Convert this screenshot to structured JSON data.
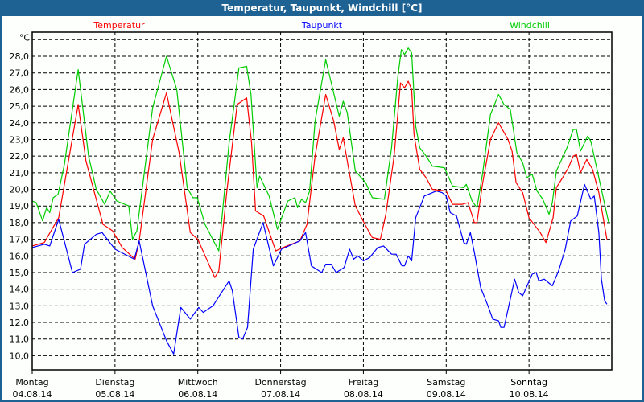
{
  "window": {
    "title": "Temperatur, Taupunkt, Windchill [°C]"
  },
  "colors": {
    "titlebar": "#1e6193",
    "Temperatur": "#ff0000",
    "Taupunkt": "#0000ff",
    "Windchill": "#00cc00",
    "grid": "#000000"
  },
  "chart_data": {
    "type": "line",
    "title": "Temperatur, Taupunkt, Windchill [°C]",
    "y_unit": "°C",
    "ylim": [
      9.15,
      29.45
    ],
    "y_ticks": [
      "28,0",
      "27,0",
      "26,0",
      "25,0",
      "24,0",
      "23,0",
      "22,0",
      "21,0",
      "20,0",
      "19,0",
      "18,0",
      "17,0",
      "16,0",
      "15,0",
      "14,0",
      "13,0",
      "12,0",
      "11,0",
      "10,0"
    ],
    "y_tick_values": [
      28,
      27,
      26,
      25,
      24,
      23,
      22,
      21,
      20,
      19,
      18,
      17,
      16,
      15,
      14,
      13,
      12,
      11,
      10
    ],
    "y_grid_values": [
      29,
      28,
      27,
      26,
      25,
      24,
      23,
      22,
      21,
      20,
      19,
      18,
      17,
      16,
      15,
      14,
      13,
      12,
      11,
      10
    ],
    "xlim": [
      "04.08.14 00:00",
      "11.08.14 00:00"
    ],
    "x_ticks": [
      {
        "day": "Montag",
        "date": "04.08.14"
      },
      {
        "day": "Dienstag",
        "date": "05.08.14"
      },
      {
        "day": "Mittwoch",
        "date": "06.08.14"
      },
      {
        "day": "Donnerstag",
        "date": "07.08.14"
      },
      {
        "day": "Freitag",
        "date": "08.08.14"
      },
      {
        "day": "Samstag",
        "date": "09.08.14"
      },
      {
        "day": "Sonntag",
        "date": "10.08.14"
      }
    ],
    "grid": true,
    "legend_placement": "top",
    "series": [
      {
        "name": "Temperatur",
        "color": "#ff0000",
        "points": [
          [
            "04.08.14 00:00",
            16.6
          ],
          [
            "04.08.14 03:30",
            16.8
          ],
          [
            "04.08.14 07:40",
            18.3
          ],
          [
            "04.08.14 13:20",
            25.1
          ],
          [
            "04.08.14 15:35",
            21.7
          ],
          [
            "04.08.14 20:30",
            17.9
          ],
          [
            "04.08.14 23:20",
            17.5
          ],
          [
            "05.08.14 02:05",
            16.5
          ],
          [
            "05.08.14 05:50",
            15.8
          ],
          [
            "05.08.14 07:00",
            16.9
          ],
          [
            "05.08.14 10:55",
            23.0
          ],
          [
            "05.08.14 14:55",
            25.8
          ],
          [
            "05.08.14 18:35",
            22.2
          ],
          [
            "05.08.14 21:50",
            17.4
          ],
          [
            "06.08.14 00:00",
            17.0
          ],
          [
            "06.08.14 04:55",
            14.7
          ],
          [
            "06.08.14 06:05",
            15.1
          ],
          [
            "06.08.14 08:25",
            19.9
          ],
          [
            "06.08.14 11:25",
            25.1
          ],
          [
            "06.08.14 14:10",
            25.5
          ],
          [
            "06.08.14 15:35",
            22.8
          ],
          [
            "06.08.14 16:45",
            18.7
          ],
          [
            "06.08.14 19:05",
            18.4
          ],
          [
            "06.08.14 22:35",
            16.3
          ],
          [
            "07.08.14 00:40",
            16.5
          ],
          [
            "07.08.14 05:35",
            16.9
          ],
          [
            "07.08.14 07:40",
            17.9
          ],
          [
            "07.08.14 10:00",
            22.0
          ],
          [
            "07.08.14 13:05",
            25.7
          ],
          [
            "07.08.14 15:25",
            24.1
          ],
          [
            "07.08.14 17:00",
            22.4
          ],
          [
            "07.08.14 18:10",
            23.1
          ],
          [
            "07.08.14 19:20",
            21.7
          ],
          [
            "07.08.14 21:40",
            19.0
          ],
          [
            "08.08.14 00:40",
            17.8
          ],
          [
            "08.08.14 02:35",
            17.1
          ],
          [
            "08.08.14 04:55",
            17.0
          ],
          [
            "08.08.14 06:30",
            18.5
          ],
          [
            "08.08.14 08:55",
            22.0
          ],
          [
            "08.08.14 10:45",
            26.4
          ],
          [
            "08.08.14 11:55",
            26.1
          ],
          [
            "08.08.14 13:00",
            26.5
          ],
          [
            "08.08.14 14:00",
            26.0
          ],
          [
            "08.08.14 14:40",
            23.3
          ],
          [
            "08.08.14 16:20",
            21.2
          ],
          [
            "08.08.14 18:10",
            20.7
          ],
          [
            "08.08.14 20:00",
            20.0
          ],
          [
            "09.08.14 00:00",
            19.9
          ],
          [
            "09.08.14 01:50",
            19.1
          ],
          [
            "09.08.14 04:40",
            19.1
          ],
          [
            "09.08.14 06:20",
            19.2
          ],
          [
            "09.08.14 08:10",
            18.0
          ],
          [
            "09.08.14 08:55",
            18.0
          ],
          [
            "09.08.14 10:30",
            20.3
          ],
          [
            "09.08.14 12:50",
            23.0
          ],
          [
            "09.08.14 15:10",
            24.0
          ],
          [
            "09.08.14 17:55",
            23.0
          ],
          [
            "09.08.14 19:05",
            22.3
          ],
          [
            "09.08.14 20:15",
            20.4
          ],
          [
            "09.08.14 22:10",
            19.8
          ],
          [
            "10.08.14 00:00",
            18.3
          ],
          [
            "10.08.14 03:15",
            17.4
          ],
          [
            "10.08.14 04:55",
            16.8
          ],
          [
            "10.08.14 07:00",
            18.3
          ],
          [
            "10.08.14 07:55",
            20.1
          ],
          [
            "10.08.14 09:45",
            20.7
          ],
          [
            "10.08.14 11:25",
            21.3
          ],
          [
            "10.08.14 12:50",
            22.0
          ],
          [
            "10.08.14 13:45",
            22.1
          ],
          [
            "10.08.14 14:55",
            21.0
          ],
          [
            "10.08.14 16:45",
            21.8
          ],
          [
            "10.08.14 18:25",
            21.2
          ],
          [
            "10.08.14 20:15",
            19.8
          ],
          [
            "10.08.14 22:35",
            17.0
          ]
        ]
      },
      {
        "name": "Taupunkt",
        "color": "#0000ff",
        "points": [
          [
            "04.08.14 00:00",
            16.5
          ],
          [
            "04.08.14 03:30",
            16.7
          ],
          [
            "04.08.14 05:05",
            16.6
          ],
          [
            "04.08.14 07:40",
            18.2
          ],
          [
            "04.08.14 11:40",
            15.0
          ],
          [
            "04.08.14 14:00",
            15.2
          ],
          [
            "04.08.14 15:10",
            16.7
          ],
          [
            "04.08.14 18:35",
            17.3
          ],
          [
            "04.08.14 20:15",
            17.4
          ],
          [
            "05.08.14 00:00",
            16.4
          ],
          [
            "05.08.14 05:35",
            15.8
          ],
          [
            "05.08.14 07:00",
            16.9
          ],
          [
            "05.08.14 10:55",
            13.0
          ],
          [
            "05.08.14 14:55",
            10.9
          ],
          [
            "05.08.14 17:00",
            10.1
          ],
          [
            "05.08.14 19:05",
            12.9
          ],
          [
            "05.08.14 21:50",
            12.2
          ],
          [
            "06.08.14 00:15",
            12.9
          ],
          [
            "06.08.14 01:35",
            12.6
          ],
          [
            "06.08.14 04:25",
            13.0
          ],
          [
            "06.08.14 07:30",
            14.0
          ],
          [
            "06.08.14 09:05",
            14.5
          ],
          [
            "06.08.14 10:00",
            13.9
          ],
          [
            "06.08.14 11:55",
            11.1
          ],
          [
            "06.08.14 13:00",
            11.0
          ],
          [
            "06.08.14 14:25",
            11.7
          ],
          [
            "06.08.14 16:05",
            16.4
          ],
          [
            "06.08.14 18:55",
            18.0
          ],
          [
            "06.08.14 21:55",
            15.4
          ],
          [
            "07.08.14 00:15",
            16.4
          ],
          [
            "07.08.14 05:35",
            16.9
          ],
          [
            "07.08.14 07:15",
            17.4
          ],
          [
            "07.08.14 08:55",
            15.4
          ],
          [
            "07.08.14 11:55",
            15.0
          ],
          [
            "07.08.14 13:05",
            15.5
          ],
          [
            "07.08.14 14:40",
            15.5
          ],
          [
            "07.08.14 16:05",
            15.0
          ],
          [
            "07.08.14 18:25",
            15.3
          ],
          [
            "07.08.14 20:00",
            16.4
          ],
          [
            "07.08.14 21:10",
            15.8
          ],
          [
            "07.08.14 22:25",
            16.0
          ],
          [
            "08.08.14 00:00",
            15.7
          ],
          [
            "08.08.14 01:50",
            15.9
          ],
          [
            "08.08.14 04:10",
            16.5
          ],
          [
            "08.08.14 05:50",
            16.6
          ],
          [
            "08.08.14 08:10",
            16.1
          ],
          [
            "08.08.14 09:30",
            16.1
          ],
          [
            "08.08.14 11:10",
            15.4
          ],
          [
            "08.08.14 11:55",
            15.4
          ],
          [
            "08.08.14 13:00",
            16.0
          ],
          [
            "08.08.14 14:00",
            15.7
          ],
          [
            "08.08.14 15:10",
            18.3
          ],
          [
            "08.08.14 17:40",
            19.6
          ],
          [
            "08.08.14 21:10",
            19.9
          ],
          [
            "08.08.14 22:50",
            19.8
          ],
          [
            "09.08.14 00:00",
            19.6
          ],
          [
            "09.08.14 01:10",
            18.6
          ],
          [
            "09.08.14 03:00",
            18.4
          ],
          [
            "09.08.14 05:05",
            16.8
          ],
          [
            "09.08.14 05:50",
            16.7
          ],
          [
            "09.08.14 07:00",
            17.4
          ],
          [
            "09.08.14 08:10",
            16.2
          ],
          [
            "09.08.14 10:00",
            14.1
          ],
          [
            "09.08.14 12:05",
            13.0
          ],
          [
            "09.08.14 13:30",
            12.2
          ],
          [
            "09.08.14 15:10",
            12.1
          ],
          [
            "09.08.14 15:50",
            11.7
          ],
          [
            "09.08.14 16:45",
            11.7
          ],
          [
            "09.08.14 18:10",
            13.0
          ],
          [
            "09.08.14 19:50",
            14.6
          ],
          [
            "09.08.14 21:00",
            13.8
          ],
          [
            "09.08.14 22:10",
            13.6
          ],
          [
            "10.08.14 00:55",
            14.9
          ],
          [
            "10.08.14 02:05",
            15.0
          ],
          [
            "10.08.14 02:50",
            14.5
          ],
          [
            "10.08.14 04:25",
            14.6
          ],
          [
            "10.08.14 06:45",
            14.2
          ],
          [
            "10.08.14 08:35",
            15.1
          ],
          [
            "10.08.14 10:30",
            16.4
          ],
          [
            "10.08.14 12:05",
            18.1
          ],
          [
            "10.08.14 14:00",
            18.4
          ],
          [
            "10.08.14 16:05",
            20.3
          ],
          [
            "10.08.14 17:55",
            19.4
          ],
          [
            "10.08.14 18:55",
            19.6
          ],
          [
            "10.08.14 20:15",
            17.4
          ],
          [
            "10.08.14 21:00",
            14.6
          ],
          [
            "10.08.14 21:55",
            13.3
          ],
          [
            "10.08.14 22:35",
            13.1
          ]
        ]
      },
      {
        "name": "Windchill",
        "color": "#00cc00",
        "points": [
          [
            "04.08.14 00:00",
            19.3
          ],
          [
            "04.08.14 01:10",
            19.2
          ],
          [
            "04.08.14 03:00",
            18.1
          ],
          [
            "04.08.14 04:10",
            18.9
          ],
          [
            "04.08.14 05:05",
            18.6
          ],
          [
            "04.08.14 06:05",
            19.5
          ],
          [
            "04.08.14 07:30",
            19.7
          ],
          [
            "04.08.14 09:20",
            21.5
          ],
          [
            "04.08.14 13:20",
            27.2
          ],
          [
            "04.08.14 16:20",
            22.0
          ],
          [
            "04.08.14 18:35",
            20.0
          ],
          [
            "04.08.14 21:00",
            19.1
          ],
          [
            "04.08.14 22:35",
            19.9
          ],
          [
            "05.08.14 00:30",
            19.3
          ],
          [
            "05.08.14 04:00",
            19.0
          ],
          [
            "05.08.14 05:05",
            17.0
          ],
          [
            "05.08.14 06:20",
            17.5
          ],
          [
            "05.08.14 10:55",
            24.9
          ],
          [
            "05.08.14 14:55",
            28.0
          ],
          [
            "05.08.14 17:55",
            26.0
          ],
          [
            "05.08.14 20:55",
            20.1
          ],
          [
            "05.08.14 22:35",
            19.5
          ],
          [
            "05.08.14 23:50",
            19.5
          ],
          [
            "06.08.14 02:05",
            17.9
          ],
          [
            "06.08.14 06:05",
            16.3
          ],
          [
            "06.08.14 09:05",
            22.8
          ],
          [
            "06.08.14 11:55",
            27.3
          ],
          [
            "06.08.14 14:10",
            27.4
          ],
          [
            "06.08.14 15:25",
            25.7
          ],
          [
            "06.08.14 17:10",
            20.1
          ],
          [
            "06.08.14 17:55",
            20.8
          ],
          [
            "06.08.14 20:40",
            19.6
          ],
          [
            "06.08.14 23:05",
            17.6
          ],
          [
            "07.08.14 02:05",
            19.3
          ],
          [
            "07.08.14 04:10",
            19.5
          ],
          [
            "07.08.14 04:55",
            18.9
          ],
          [
            "07.08.14 06:05",
            19.4
          ],
          [
            "07.08.14 07:15",
            19.2
          ],
          [
            "07.08.14 08:25",
            19.9
          ],
          [
            "07.08.14 10:00",
            24.1
          ],
          [
            "07.08.14 13:05",
            27.8
          ],
          [
            "07.08.14 17:00",
            24.4
          ],
          [
            "07.08.14 18:10",
            25.3
          ],
          [
            "07.08.14 19:20",
            24.6
          ],
          [
            "07.08.14 21:40",
            21.1
          ],
          [
            "08.08.14 00:40",
            20.4
          ],
          [
            "08.08.14 02:35",
            19.5
          ],
          [
            "08.08.14 06:05",
            19.4
          ],
          [
            "08.08.14 08:10",
            22.5
          ],
          [
            "08.08.14 10:00",
            26.8
          ],
          [
            "08.08.14 11:00",
            28.4
          ],
          [
            "08.08.14 11:55",
            28.1
          ],
          [
            "08.08.14 13:00",
            28.5
          ],
          [
            "08.08.14 14:00",
            28.2
          ],
          [
            "08.08.14 15:10",
            23.8
          ],
          [
            "08.08.14 16:20",
            22.5
          ],
          [
            "08.08.14 18:10",
            22.0
          ],
          [
            "08.08.14 20:00",
            21.4
          ],
          [
            "08.08.14 23:30",
            21.3
          ],
          [
            "09.08.14 01:50",
            20.2
          ],
          [
            "09.08.14 05:05",
            20.1
          ],
          [
            "09.08.14 05:50",
            20.3
          ],
          [
            "09.08.14 07:30",
            19.3
          ],
          [
            "09.08.14 08:55",
            18.9
          ],
          [
            "09.08.14 10:30",
            20.9
          ],
          [
            "09.08.14 12:50",
            24.5
          ],
          [
            "09.08.14 15:10",
            25.7
          ],
          [
            "09.08.14 16:45",
            25.1
          ],
          [
            "09.08.14 18:35",
            24.8
          ],
          [
            "09.08.14 20:30",
            22.2
          ],
          [
            "09.08.14 22:10",
            21.6
          ],
          [
            "09.08.14 23:20",
            20.7
          ],
          [
            "10.08.14 00:55",
            20.9
          ],
          [
            "10.08.14 02:20",
            19.9
          ],
          [
            "10.08.14 04:00",
            19.4
          ],
          [
            "10.08.14 05:50",
            18.5
          ],
          [
            "10.08.14 06:45",
            19.2
          ],
          [
            "10.08.14 07:55",
            21.1
          ],
          [
            "10.08.14 11:00",
            22.5
          ],
          [
            "10.08.14 12:50",
            23.6
          ],
          [
            "10.08.14 13:45",
            23.6
          ],
          [
            "10.08.14 14:55",
            22.3
          ],
          [
            "10.08.14 17:00",
            23.2
          ],
          [
            "10.08.14 17:55",
            22.9
          ],
          [
            "10.08.14 20:15",
            20.7
          ],
          [
            "10.08.14 23:05",
            18.0
          ]
        ]
      }
    ]
  }
}
